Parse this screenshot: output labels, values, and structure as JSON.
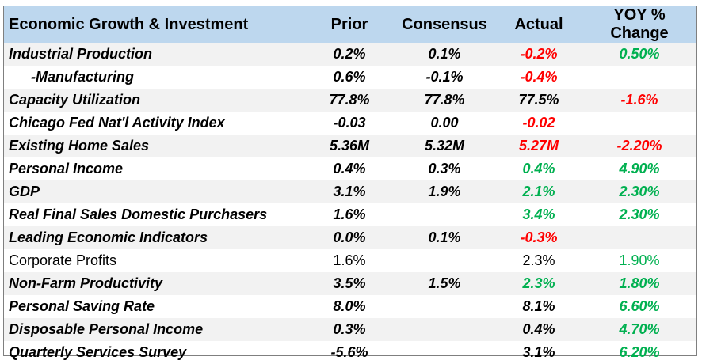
{
  "table": {
    "headers": [
      "Economic Growth & Investment",
      "Prior",
      "Consensus",
      "Actual",
      "YOY % Change"
    ],
    "rows": [
      {
        "indicator": "Industrial Production",
        "prior": "0.2%",
        "consensus": "0.1%",
        "actual": "-0.2%",
        "actual_color": "red",
        "yoy": "0.50%",
        "yoy_color": "green",
        "style": "bold-italic"
      },
      {
        "indicator": "-Manufacturing",
        "prior": "0.6%",
        "consensus": "-0.1%",
        "actual": "-0.4%",
        "actual_color": "red",
        "yoy": "",
        "yoy_color": "black",
        "style": "bold-italic",
        "indent": true
      },
      {
        "indicator": "Capacity Utilization",
        "prior": "77.8%",
        "consensus": "77.8%",
        "actual": "77.5%",
        "actual_color": "black",
        "yoy": "-1.6%",
        "yoy_color": "red",
        "style": "bold-italic"
      },
      {
        "indicator": "Chicago Fed Nat'l Activity Index",
        "prior": "-0.03",
        "consensus": "0.00",
        "actual": "-0.02",
        "actual_color": "red",
        "yoy": "",
        "yoy_color": "black",
        "style": "bold-italic"
      },
      {
        "indicator": "Existing Home Sales",
        "prior": "5.36M",
        "consensus": "5.32M",
        "actual": "5.27M",
        "actual_color": "red",
        "yoy": "-2.20%",
        "yoy_color": "red",
        "style": "bold-italic"
      },
      {
        "indicator": "Personal Income",
        "prior": "0.4%",
        "consensus": "0.3%",
        "actual": "0.4%",
        "actual_color": "green",
        "yoy": "4.90%",
        "yoy_color": "green",
        "style": "bold-italic"
      },
      {
        "indicator": "GDP",
        "prior": "3.1%",
        "consensus": "1.9%",
        "actual": "2.1%",
        "actual_color": "green",
        "yoy": "2.30%",
        "yoy_color": "green",
        "style": "bold-italic"
      },
      {
        "indicator": "Real Final Sales Domestic Purchasers",
        "prior": "1.6%",
        "consensus": "",
        "actual": "3.4%",
        "actual_color": "green",
        "yoy": "2.30%",
        "yoy_color": "green",
        "style": "bold-italic"
      },
      {
        "indicator": "Leading Economic Indicators",
        "prior": "0.0%",
        "consensus": "0.1%",
        "actual": "-0.3%",
        "actual_color": "red",
        "yoy": "",
        "yoy_color": "black",
        "style": "bold-italic"
      },
      {
        "indicator": "Corporate Profits",
        "prior": "1.6%",
        "consensus": "",
        "actual": "2.3%",
        "actual_color": "black",
        "yoy": "1.90%",
        "yoy_color": "green",
        "style": "plain"
      },
      {
        "indicator": "Non-Farm Productivity",
        "prior": "3.5%",
        "consensus": "1.5%",
        "actual": "2.3%",
        "actual_color": "green",
        "yoy": "1.80%",
        "yoy_color": "green",
        "style": "bold-italic"
      },
      {
        "indicator": "Personal Saving Rate",
        "prior": "8.0%",
        "consensus": "",
        "actual": "8.1%",
        "actual_color": "black",
        "yoy": "6.60%",
        "yoy_color": "green",
        "style": "bold-italic"
      },
      {
        "indicator": "Disposable Personal Income",
        "prior": "0.3%",
        "consensus": "",
        "actual": "0.4%",
        "actual_color": "black",
        "yoy": "4.70%",
        "yoy_color": "green",
        "style": "bold-italic"
      },
      {
        "indicator": "Quarterly Services Survey",
        "prior": "-5.6%",
        "consensus": "",
        "actual": "3.1%",
        "actual_color": "black",
        "yoy": "6.20%",
        "yoy_color": "green",
        "style": "bold-italic"
      }
    ],
    "colors": {
      "header_bg": "#bdd7ee",
      "stripe_bg": "#f2f2f2",
      "red": "#ff0000",
      "green": "#00b050"
    }
  }
}
